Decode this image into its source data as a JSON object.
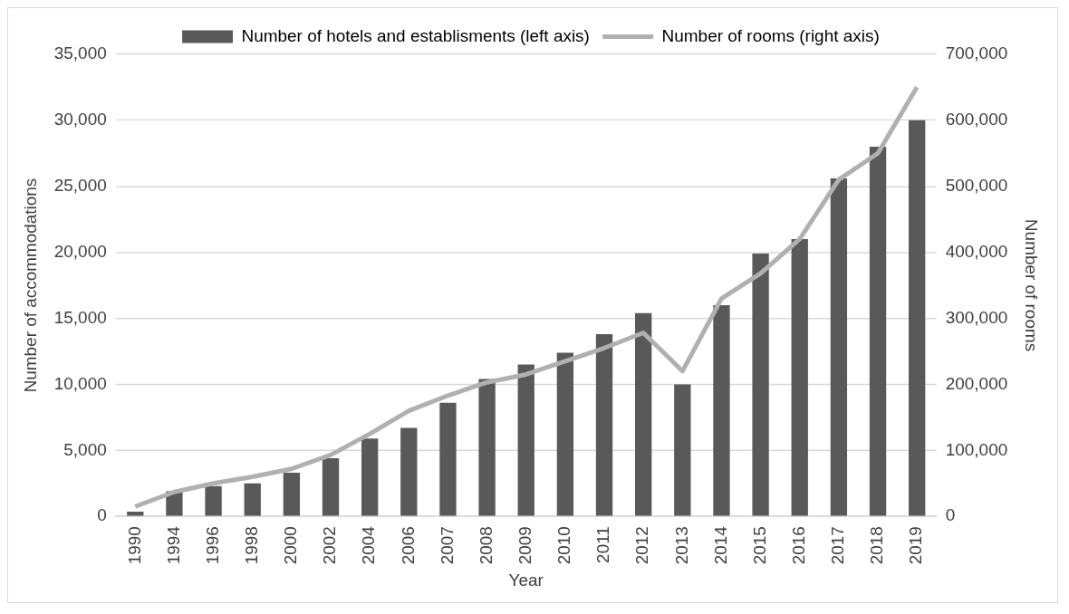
{
  "chart_data": {
    "type": "bar",
    "xlabel": "Year",
    "ylabel": "Number of accommodations",
    "y2label": "Number of rooms",
    "categories": [
      "1990",
      "1994",
      "1996",
      "1998",
      "2000",
      "2002",
      "2004",
      "2006",
      "2007",
      "2008",
      "2009",
      "2010",
      "2011",
      "2012",
      "2013",
      "2014",
      "2015",
      "2016",
      "2017",
      "2018",
      "2019"
    ],
    "series": [
      {
        "name": "Number of hotels and establisments (left axis)",
        "color": "#595959",
        "values": [
          350,
          1900,
          2300,
          2500,
          3300,
          4400,
          5900,
          6700,
          8600,
          10400,
          11500,
          12400,
          13800,
          15400,
          10000,
          16000,
          19900,
          21000,
          25600,
          28000,
          30000
        ]
      },
      {
        "name": "Number of rooms (right axis)",
        "type": "line",
        "axis": "y2",
        "color": "#b0b0b0",
        "values": [
          15000,
          37000,
          50000,
          60000,
          72000,
          93000,
          125000,
          160000,
          183000,
          203000,
          215000,
          235000,
          255000,
          278000,
          220000,
          330000,
          368000,
          420000,
          510000,
          550000,
          650000
        ]
      }
    ],
    "ylim": [
      0,
      35000
    ],
    "yticks": [
      {
        "value": 0,
        "label": "0"
      },
      {
        "value": 5000,
        "label": "5,000"
      },
      {
        "value": 10000,
        "label": "10,000"
      },
      {
        "value": 15000,
        "label": "15,000"
      },
      {
        "value": 20000,
        "label": "20,000"
      },
      {
        "value": 25000,
        "label": "25,000"
      },
      {
        "value": 30000,
        "label": "30,000"
      },
      {
        "value": 35000,
        "label": "35,000"
      }
    ],
    "y2lim": [
      0,
      700000
    ],
    "y2ticks": [
      {
        "value": 0,
        "label": "0"
      },
      {
        "value": 100000,
        "label": "100,000"
      },
      {
        "value": 200000,
        "label": "200,000"
      },
      {
        "value": 300000,
        "label": "300,000"
      },
      {
        "value": 400000,
        "label": "400,000"
      },
      {
        "value": 500000,
        "label": "500,000"
      },
      {
        "value": 600000,
        "label": "600,000"
      },
      {
        "value": 700000,
        "label": "700,000"
      }
    ],
    "grid": "y",
    "legend": "top",
    "marker": "none",
    "line_style": "solid"
  }
}
